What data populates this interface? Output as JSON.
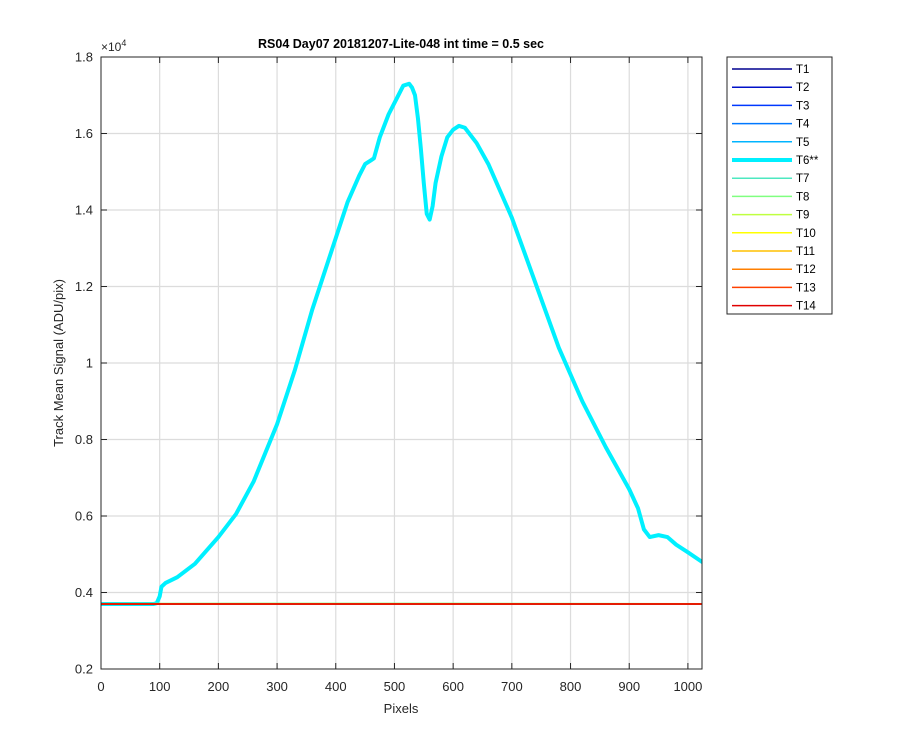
{
  "chart_data": {
    "type": "line",
    "title": "RS04 Day07 20181207-Lite-048 int time = 0.5 sec",
    "xlabel": "Pixels",
    "ylabel": "Track Mean Signal (ADU/pix)",
    "y_exponent_label": "×10",
    "y_exponent_power": "4",
    "xlim": [
      0,
      1024
    ],
    "ylim": [
      2000,
      18000
    ],
    "grid": true,
    "legend_placement": "outside-right",
    "x_ticks": [
      0,
      100,
      200,
      300,
      400,
      500,
      600,
      700,
      800,
      900,
      1000
    ],
    "x_tick_labels": [
      "0",
      "100",
      "200",
      "300",
      "400",
      "500",
      "600",
      "700",
      "800",
      "900",
      "1000"
    ],
    "y_ticks": [
      2000,
      4000,
      6000,
      8000,
      10000,
      12000,
      14000,
      16000,
      18000
    ],
    "y_tick_labels": [
      "0.2",
      "0.4",
      "0.6",
      "0.8",
      "1",
      "1.2",
      "1.4",
      "1.6",
      "1.8"
    ],
    "series": [
      {
        "name": "T1",
        "color": "#00008f",
        "width": 1.5,
        "x": [
          0,
          1024
        ],
        "values": [
          3700,
          3700
        ]
      },
      {
        "name": "T2",
        "color": "#0010c8",
        "width": 1.5,
        "x": [
          0,
          1024
        ],
        "values": [
          3700,
          3700
        ]
      },
      {
        "name": "T3",
        "color": "#0039ff",
        "width": 1.5,
        "x": [
          0,
          1024
        ],
        "values": [
          3700,
          3700
        ]
      },
      {
        "name": "T4",
        "color": "#0078ff",
        "width": 1.5,
        "x": [
          0,
          1024
        ],
        "values": [
          3700,
          3700
        ]
      },
      {
        "name": "T5",
        "color": "#00b4ff",
        "width": 1.5,
        "x": [
          0,
          1024
        ],
        "values": [
          3700,
          3700
        ]
      },
      {
        "name": "T6**",
        "color": "#00f0ff",
        "width": 4,
        "x": [
          0,
          60,
          90,
          95,
          100,
          103,
          110,
          130,
          160,
          200,
          230,
          260,
          300,
          330,
          360,
          390,
          420,
          440,
          450,
          460,
          465,
          475,
          490,
          505,
          515,
          525,
          530,
          535,
          540,
          545,
          550,
          555,
          560,
          565,
          570,
          580,
          590,
          600,
          610,
          620,
          640,
          660,
          700,
          740,
          780,
          820,
          860,
          900,
          915,
          925,
          935,
          950,
          965,
          980,
          1000,
          1024
        ],
        "values": [
          3700,
          3700,
          3700,
          3720,
          3900,
          4150,
          4250,
          4400,
          4750,
          5450,
          6050,
          6900,
          8400,
          9800,
          11400,
          12800,
          14200,
          14900,
          15200,
          15300,
          15350,
          15900,
          16500,
          16950,
          17250,
          17300,
          17200,
          17000,
          16400,
          15600,
          14700,
          13900,
          13750,
          14100,
          14700,
          15400,
          15900,
          16100,
          16200,
          16150,
          15750,
          15200,
          13800,
          12100,
          10400,
          9000,
          7800,
          6700,
          6200,
          5650,
          5450,
          5500,
          5450,
          5250,
          5050,
          4800
        ]
      },
      {
        "name": "T7",
        "color": "#4de8c0",
        "width": 1.5,
        "x": [
          0,
          1024
        ],
        "values": [
          3705,
          3705
        ]
      },
      {
        "name": "T8",
        "color": "#80ff80",
        "width": 1.5,
        "x": [
          0,
          300,
          600,
          1024
        ],
        "values": [
          3710,
          3715,
          3715,
          3705
        ]
      },
      {
        "name": "T9",
        "color": "#bfff40",
        "width": 1.5,
        "x": [
          0,
          1024
        ],
        "values": [
          3705,
          3705
        ]
      },
      {
        "name": "T10",
        "color": "#ffff00",
        "width": 1.5,
        "x": [
          0,
          1024
        ],
        "values": [
          3702,
          3702
        ]
      },
      {
        "name": "T11",
        "color": "#ffc000",
        "width": 1.5,
        "x": [
          0,
          1024
        ],
        "values": [
          3700,
          3700
        ]
      },
      {
        "name": "T12",
        "color": "#ff7f00",
        "width": 1.5,
        "x": [
          0,
          1024
        ],
        "values": [
          3700,
          3700
        ]
      },
      {
        "name": "T13",
        "color": "#ff4000",
        "width": 1.5,
        "x": [
          0,
          1024
        ],
        "values": [
          3700,
          3700
        ]
      },
      {
        "name": "T14",
        "color": "#e00000",
        "width": 1.5,
        "x": [
          0,
          1024
        ],
        "values": [
          3700,
          3700
        ]
      }
    ]
  }
}
